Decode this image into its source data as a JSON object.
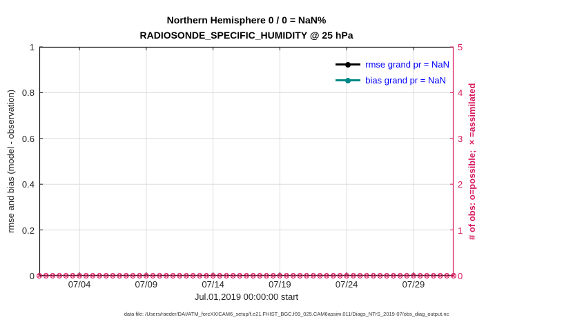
{
  "figure": {
    "title_line1": "Northern Hemisphere 0 / 0 = NaN%",
    "title_line2": "RADIOSONDE_SPECIFIC_HUMIDITY @ 25 hPa",
    "xlabel": "Jul.01,2019 00:00:00 start",
    "ylabel_left": "rmse and bias (model - observation)",
    "ylabel_right": "# of obs: o=possible; ×=assimilated",
    "caption": "data file: /Users/raeder/DAI/ATM_forcXX/CAM6_setup/f.e21.FHIST_BGC.f09_025.CAM6assim.011/Diags_NTrS_2019-07/obs_diag_output.nc"
  },
  "legend": {
    "text_color": "#0000ff",
    "items": [
      {
        "label": "rmse grand pr = NaN",
        "color": "#000000"
      },
      {
        "label": "bias grand pr = NaN",
        "color": "#008888"
      }
    ]
  },
  "colors": {
    "axis": "#1a1a1a",
    "grid": "#dcdcdc",
    "right_axis": "#d81b60",
    "background": "#ffffff"
  },
  "chart_data": {
    "type": "line",
    "title": "Northern Hemisphere 0 / 0 = NaN% — RADIOSONDE_SPECIFIC_HUMIDITY @ 25 hPa",
    "xlabel": "Jul.01,2019 00:00:00 start",
    "ylabel_left": "rmse and bias (model - observation)",
    "ylabel_right": "# of obs: o=possible; ×=assimilated",
    "x_tick_labels": [
      "07/04",
      "07/09",
      "07/14",
      "07/19",
      "07/24",
      "07/29"
    ],
    "x_tick_days": [
      4,
      9,
      14,
      19,
      24,
      29
    ],
    "x_range_days": [
      1,
      32
    ],
    "y_left_ticks": [
      "0",
      "0.2",
      "0.4",
      "0.6",
      "0.8",
      "1"
    ],
    "y_left_tick_values": [
      0,
      0.2,
      0.4,
      0.6,
      0.8,
      1
    ],
    "y_left_range": [
      0,
      1
    ],
    "y_right_ticks": [
      "0",
      "1",
      "2",
      "3",
      "4",
      "5"
    ],
    "y_right_tick_values": [
      0,
      1,
      2,
      3,
      4,
      5
    ],
    "y_right_range": [
      0,
      5
    ],
    "grid": true,
    "legend_position": "upper-right",
    "series": [
      {
        "name": "rmse grand pr",
        "axis": "left",
        "color": "#000000",
        "marker": "filled-circle",
        "summary_value": "NaN",
        "values": []
      },
      {
        "name": "bias grand pr",
        "axis": "left",
        "color": "#008888",
        "marker": "filled-circle",
        "summary_value": "NaN",
        "values": []
      },
      {
        "name": "# of obs possible (o)",
        "axis": "right",
        "color": "#d81b60",
        "marker": "circle",
        "constant_value": 0
      },
      {
        "name": "# of obs assimilated (x)",
        "axis": "right",
        "color": "#d81b60",
        "marker": "x",
        "constant_value": 0
      }
    ],
    "obs_marker_step_days": 0.5
  }
}
